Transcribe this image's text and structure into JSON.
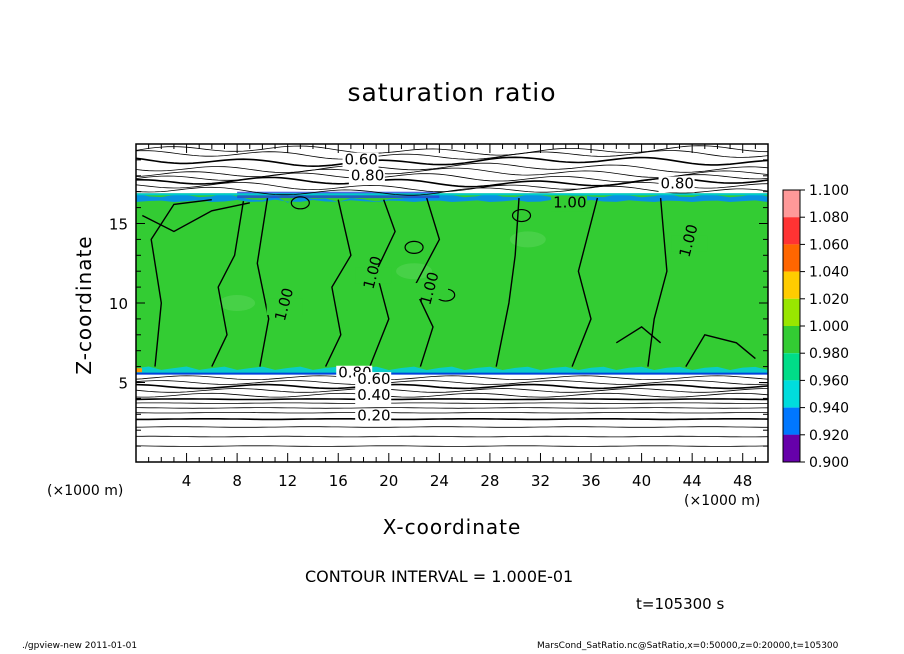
{
  "chart_data": {
    "type": "heatmap",
    "title": "saturation ratio",
    "xlabel": "X-coordinate",
    "ylabel": "Z-coordinate",
    "x_unit": "(×1000 m)",
    "x_unit_right": "(×1000 m)",
    "xlim": [
      0,
      50
    ],
    "ylim": [
      0,
      20
    ],
    "x_ticks": [
      4,
      8,
      12,
      16,
      20,
      24,
      28,
      32,
      36,
      40,
      44,
      48
    ],
    "y_ticks": [
      5,
      10,
      15
    ],
    "colorbar": {
      "min": 0.9,
      "max": 1.1,
      "labels": [
        "1.100",
        "1.080",
        "1.060",
        "1.040",
        "1.020",
        "1.000",
        "0.980",
        "0.960",
        "0.940",
        "0.920",
        "0.900"
      ],
      "colors": [
        "#ff9999",
        "#ff3333",
        "#ff6600",
        "#ffcc00",
        "#99e600",
        "#33cc33",
        "#00dd88",
        "#00dddd",
        "#0077ff",
        "#0000cc",
        "#6600aa"
      ]
    },
    "contour_labels": [
      {
        "text": "0.60",
        "x": 16.5,
        "z": 18.7
      },
      {
        "text": "0.80",
        "x": 17.0,
        "z": 17.7
      },
      {
        "text": "0.80",
        "x": 41.5,
        "z": 17.2
      },
      {
        "text": "1.00",
        "x": 33.0,
        "z": 16.0
      },
      {
        "text": "1.00",
        "x": 10.5,
        "z": 9.5
      },
      {
        "text": "1.00",
        "x": 17.5,
        "z": 11.5
      },
      {
        "text": "1.00",
        "x": 22.0,
        "z": 10.5
      },
      {
        "text": "1.00",
        "x": 42.5,
        "z": 13.5
      },
      {
        "text": "0.80",
        "x": 16.0,
        "z": 5.3
      },
      {
        "text": "0.60",
        "x": 17.5,
        "z": 4.9
      },
      {
        "text": "0.40",
        "x": 17.5,
        "z": 3.9
      },
      {
        "text": "0.20",
        "x": 17.5,
        "z": 2.6
      }
    ],
    "contour_interval_text": "CONTOUR INTERVAL = 1.000E-01",
    "time_text": "t=105300 s"
  },
  "footer": {
    "left": "./gpview-new   2011-01-01",
    "right": "MarsCond_SatRatio.nc@SatRatio,x=0:50000,z=0:20000,t=105300"
  }
}
